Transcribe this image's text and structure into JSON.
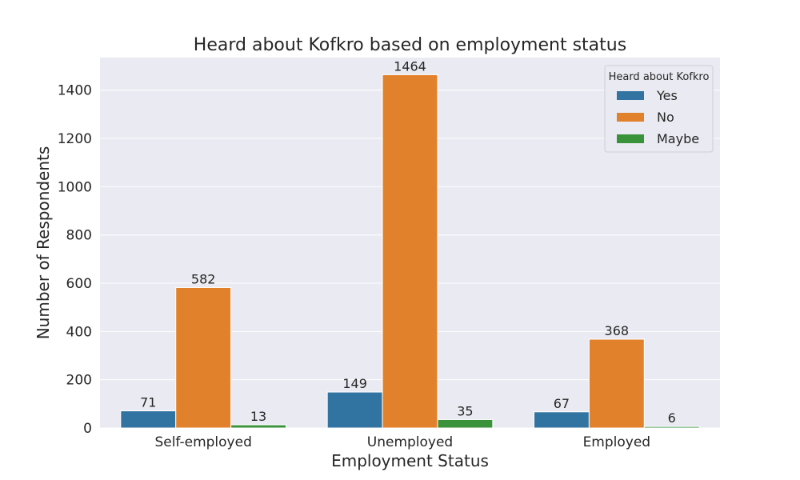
{
  "chart_data": {
    "type": "bar",
    "title": "Heard about Kofkro based on employment status",
    "xlabel": "Employment Status",
    "ylabel": "Number of Respondents",
    "categories": [
      "Self-employed",
      "Unemployed",
      "Employed"
    ],
    "series": [
      {
        "name": "Yes",
        "color": "#3274a1",
        "values": [
          71,
          149,
          67
        ]
      },
      {
        "name": "No",
        "color": "#e1812c",
        "values": [
          582,
          1464,
          368
        ]
      },
      {
        "name": "Maybe",
        "color": "#3a923a",
        "values": [
          13,
          35,
          6
        ]
      }
    ],
    "ylim": [
      0,
      1535
    ],
    "yticks": [
      0,
      200,
      400,
      600,
      800,
      1000,
      1200,
      1400
    ],
    "grid": true,
    "legend": {
      "title": "Heard about Kofkro",
      "placement": "top-right"
    },
    "plot_background": "#eaeaf2"
  }
}
